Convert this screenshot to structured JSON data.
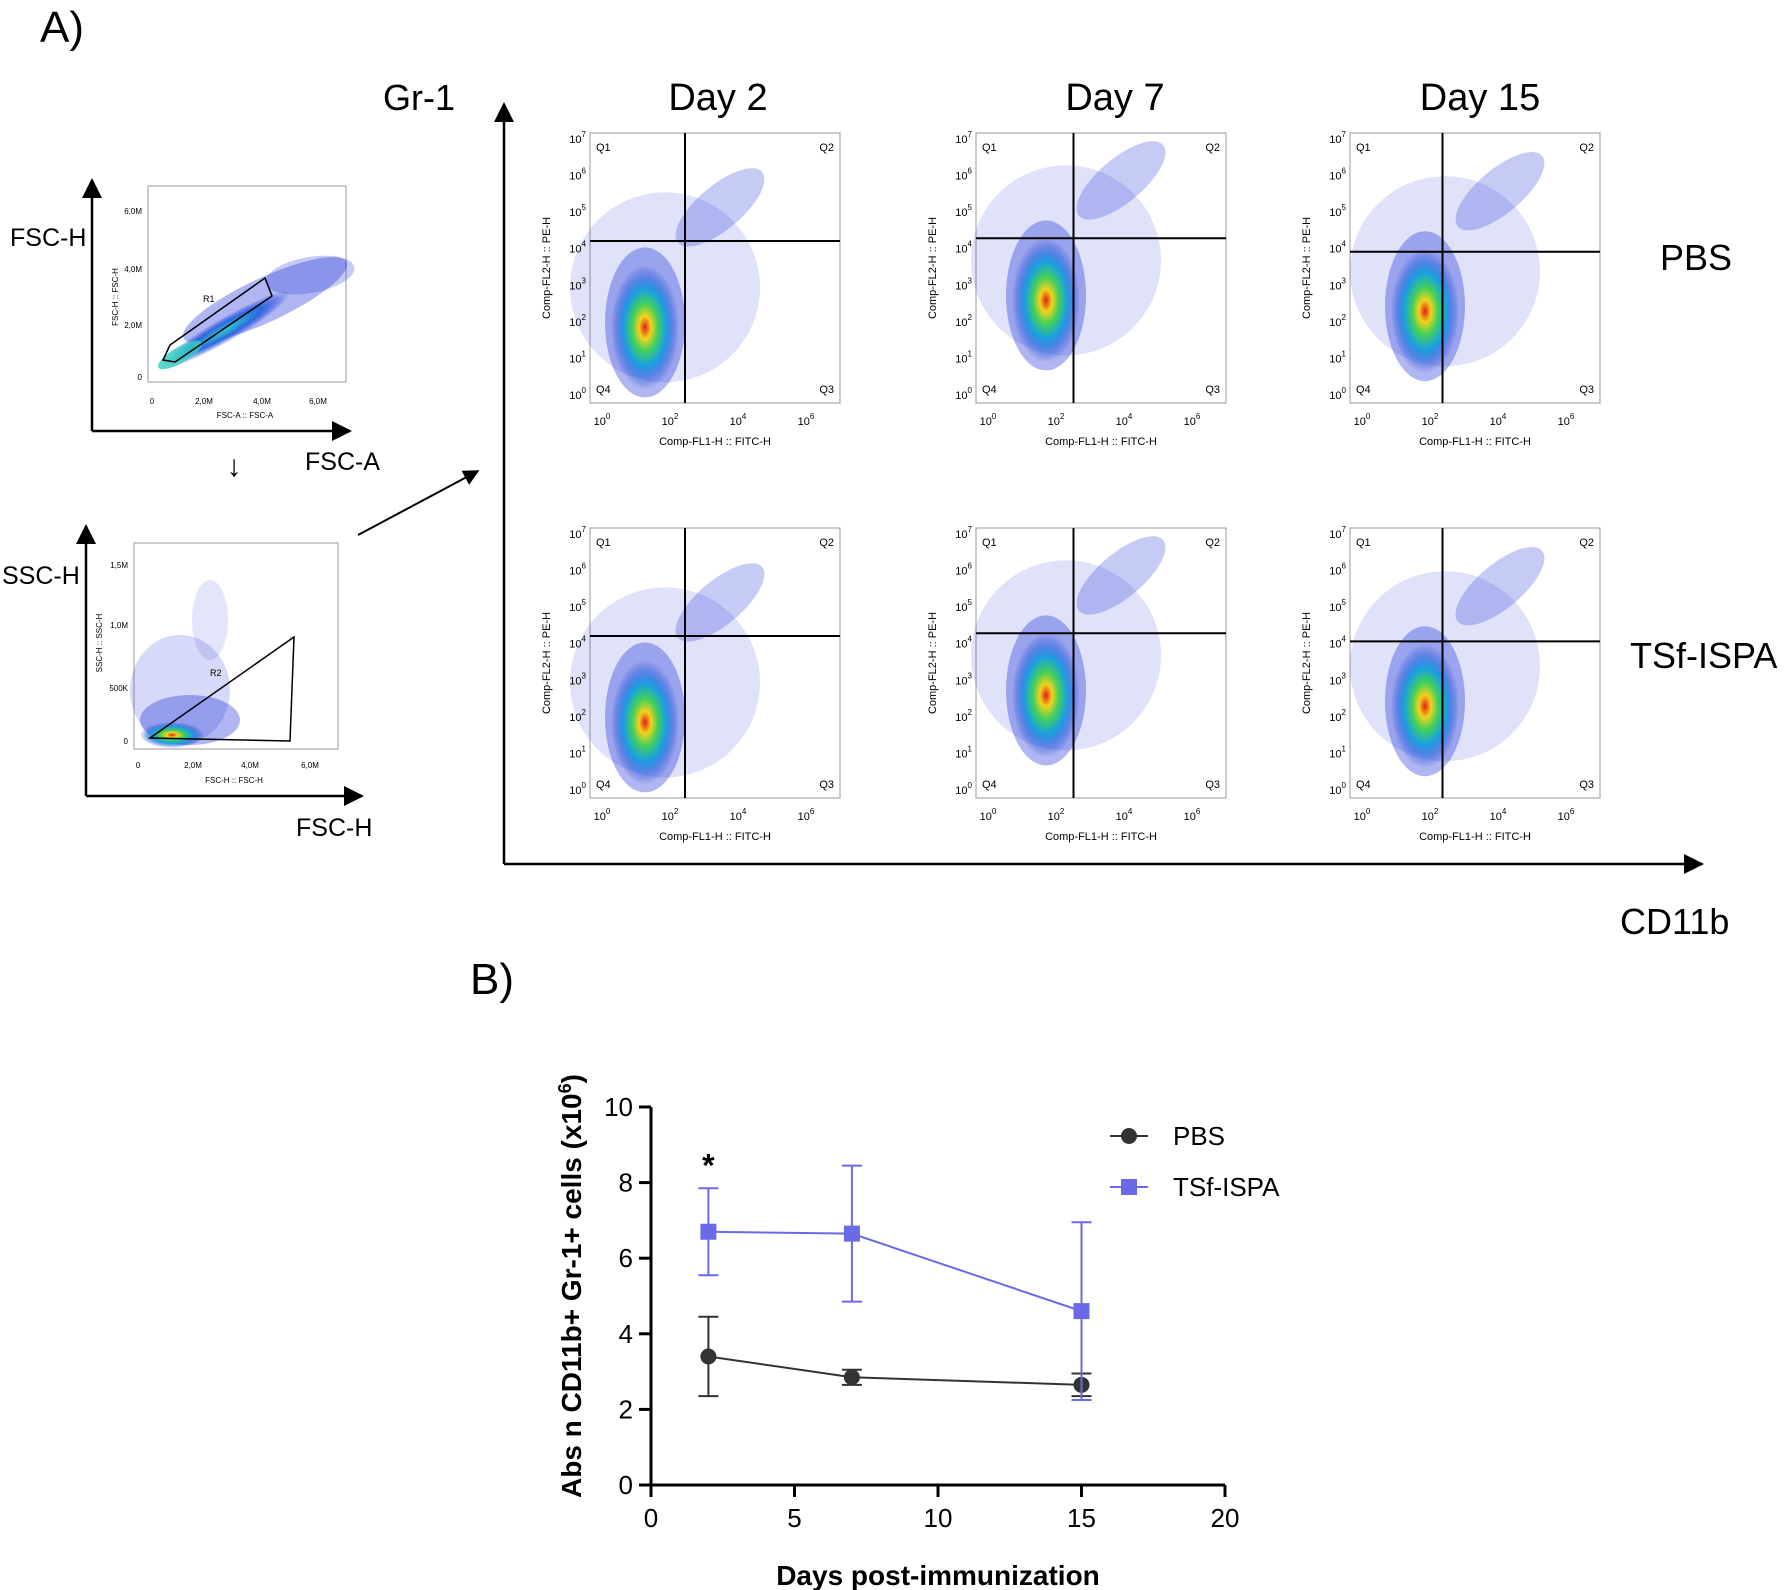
{
  "panel_a": {
    "label": "A)",
    "gating": {
      "plot1": {
        "outer_y": "FSC-H",
        "outer_x": "FSC-A",
        "inner_y": "FSC-H :: FSC-H",
        "inner_x": "FSC-A :: FSC-A",
        "gate": "R1",
        "yticks": [
          "0",
          "2,0M",
          "4,0M",
          "6,0M"
        ],
        "xticks": [
          "0",
          "2,0M",
          "4,0M",
          "6,0M"
        ]
      },
      "arrow_down": "↓",
      "plot2": {
        "outer_y": "SSC-H",
        "outer_x": "FSC-H",
        "inner_y": "SSC-H :: SSC-H",
        "inner_x": "FSC-H :: FSC-H",
        "gate": "R2",
        "yticks": [
          "0",
          "500K",
          "1,0M",
          "1,5M"
        ],
        "xticks": [
          "0",
          "2,0M",
          "4,0M",
          "6,0M"
        ]
      }
    },
    "big_axes": {
      "y_label": "Gr-1",
      "x_label": "CD11b"
    },
    "columns": [
      "Day 2",
      "Day 7",
      "Day 15"
    ],
    "rows": [
      "PBS",
      "TSf-ISPA"
    ],
    "facs": {
      "xlabel": "Comp-FL1-H :: FITC-H",
      "ylabel": "Comp-FL2-H :: PE-H",
      "quadrants": [
        "Q1",
        "Q2",
        "Q3",
        "Q4"
      ],
      "tick_base": "10",
      "xexp": [
        "0",
        "2",
        "4",
        "6"
      ],
      "yexp": [
        "0",
        "1",
        "2",
        "3",
        "4",
        "5",
        "6",
        "7"
      ]
    }
  },
  "panel_b": {
    "label": "B)"
  },
  "chart_data": {
    "type": "line",
    "title": "",
    "xlabel": "Days post-immunization",
    "ylabel": "Abs n CD11b+ Gr-1+ cells (x10",
    "ylabel_sup": "6",
    "ylabel_end": ")",
    "xlim": [
      0,
      20
    ],
    "ylim": [
      0,
      10
    ],
    "xticks": [
      0,
      5,
      10,
      15,
      20
    ],
    "yticks": [
      0,
      2,
      4,
      6,
      8,
      10
    ],
    "x": [
      2,
      7,
      15
    ],
    "series": [
      {
        "name": "PBS",
        "color": "#333333",
        "marker": "circle",
        "values": [
          3.4,
          2.85,
          2.65
        ],
        "err": [
          1.05,
          0.2,
          0.3
        ]
      },
      {
        "name": "TSf-ISPA",
        "color": "#6a6ae6",
        "marker": "square",
        "values": [
          6.7,
          6.65,
          4.6
        ],
        "err": [
          1.15,
          1.8,
          2.35
        ]
      }
    ],
    "annotations": [
      {
        "x": 2,
        "text": "*"
      }
    ],
    "legend": "top-right"
  }
}
